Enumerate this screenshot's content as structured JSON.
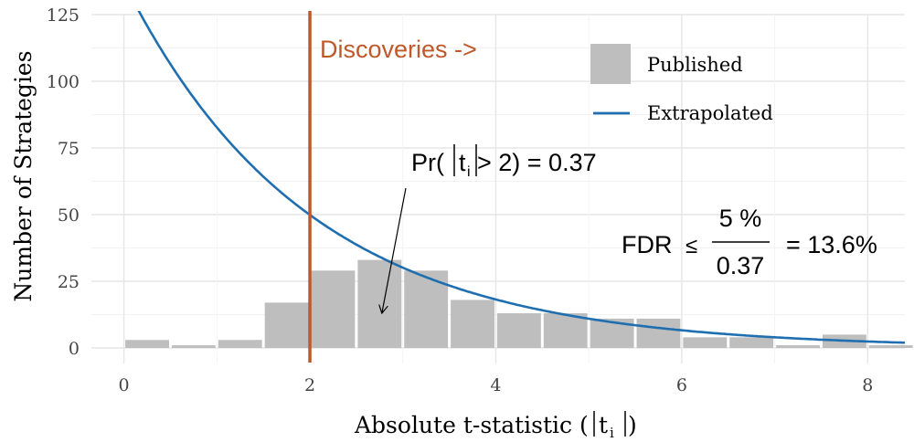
{
  "chart_data": {
    "type": "bar",
    "ylabel": "Number of Strategies",
    "xlabel_main": "Absolute t-statistic (",
    "xlabel_t": "t",
    "xlabel_sub": "i",
    "xlabel_close": ")",
    "xlim": [
      -0.35,
      8.4
    ],
    "ylim": [
      0,
      125
    ],
    "x_ticks": [
      0,
      2,
      4,
      6,
      8
    ],
    "y_ticks": [
      0,
      25,
      50,
      75,
      100,
      125
    ],
    "grid": "on",
    "bin_width": 0.5,
    "series": [
      {
        "name": "Published",
        "type": "bar",
        "color": "#bebebe",
        "bin_centers": [
          0.25,
          0.75,
          1.25,
          1.75,
          2.25,
          2.75,
          3.25,
          3.75,
          4.25,
          4.75,
          5.25,
          5.75,
          6.25,
          6.75,
          7.25,
          7.75,
          8.25
        ],
        "values": [
          3,
          1,
          3,
          17,
          29,
          33,
          29,
          18,
          13,
          13,
          11,
          11,
          4,
          4,
          1,
          5,
          1
        ]
      },
      {
        "name": "Extrapolated",
        "type": "line",
        "color": "#1f6fb0",
        "function": "exponential",
        "amplitude": 137,
        "rate": 0.505
      }
    ],
    "threshold": {
      "x": 2,
      "label": "Discoveries ->",
      "color": "#c0582a"
    },
    "legend": {
      "placement": "top-right",
      "items": [
        {
          "label": "Published",
          "symbol": "bar",
          "color": "#bebebe"
        },
        {
          "label": "Extrapolated",
          "symbol": "line",
          "color": "#1f6fb0"
        }
      ]
    },
    "annotations": {
      "pr": {
        "prefix": "Pr(",
        "t": "t",
        "sub": "i",
        "rest": " > 2) = 0.37",
        "arrow": "from label to bar at 2.75"
      },
      "fdr": {
        "label": "FDR",
        "symbol": "≤",
        "numerator": "5 %",
        "denominator": "0.37",
        "result": "= 13.6%"
      }
    }
  }
}
